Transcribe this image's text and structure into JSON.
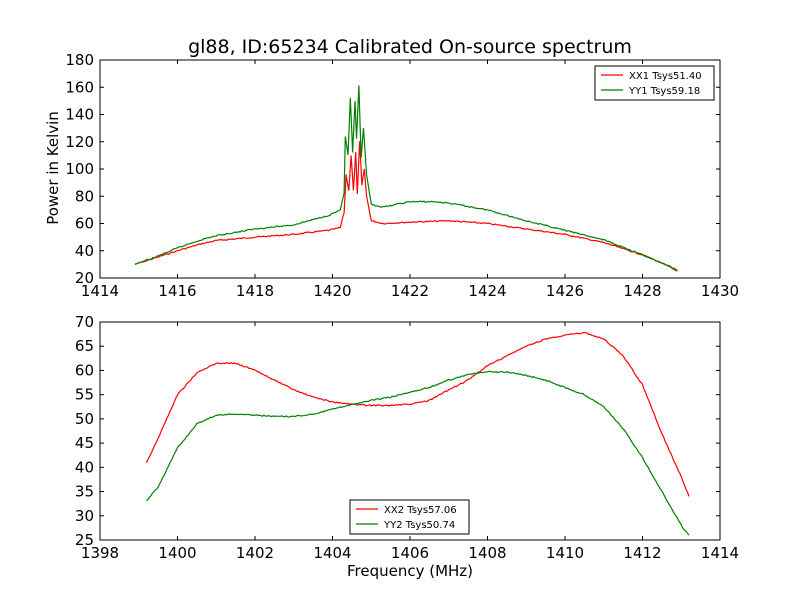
{
  "figure": {
    "title": "gl88, ID:65234 Calibrated On-source spectrum"
  },
  "colors": {
    "xx": "#ff0000",
    "yy": "#008000"
  },
  "chart_data": [
    {
      "type": "line",
      "title": "gl88, ID:65234 Calibrated On-source spectrum",
      "xlabel": "",
      "ylabel": "Power in Kelvin",
      "xlim": [
        1414,
        1430
      ],
      "ylim": [
        20,
        180
      ],
      "xticks": [
        1414,
        1416,
        1418,
        1420,
        1422,
        1424,
        1426,
        1428,
        1430
      ],
      "yticks": [
        20,
        40,
        60,
        80,
        100,
        120,
        140,
        160,
        180
      ],
      "legend_position": "top-right",
      "grid": false,
      "series": [
        {
          "name": "XX1 Tsys51.40",
          "color": "#ff0000",
          "points": [
            [
              1414.9,
              30
            ],
            [
              1415.4,
              34.5
            ],
            [
              1416,
              40
            ],
            [
              1416.6,
              45
            ],
            [
              1417,
              47.5
            ],
            [
              1418,
              50
            ],
            [
              1419,
              52
            ],
            [
              1419.9,
              55
            ],
            [
              1420.2,
              57
            ],
            [
              1420.3,
              68
            ],
            [
              1420.35,
              96
            ],
            [
              1420.42,
              84
            ],
            [
              1420.48,
              110
            ],
            [
              1420.54,
              84
            ],
            [
              1420.6,
              112
            ],
            [
              1420.64,
              82
            ],
            [
              1420.7,
              120
            ],
            [
              1420.76,
              88
            ],
            [
              1420.82,
              100
            ],
            [
              1420.88,
              80
            ],
            [
              1421,
              62
            ],
            [
              1421.3,
              60
            ],
            [
              1422,
              61
            ],
            [
              1423,
              62
            ],
            [
              1424,
              60
            ],
            [
              1425,
              56
            ],
            [
              1426,
              52
            ],
            [
              1427,
              46
            ],
            [
              1428,
              37
            ],
            [
              1428.5,
              31
            ],
            [
              1428.9,
              25
            ]
          ]
        },
        {
          "name": "YY1 Tsys59.18",
          "color": "#008000",
          "points": [
            [
              1414.9,
              30
            ],
            [
              1415.4,
              35
            ],
            [
              1416,
              42
            ],
            [
              1416.6,
              48
            ],
            [
              1417,
              51
            ],
            [
              1418,
              56
            ],
            [
              1419,
              59
            ],
            [
              1419.9,
              66
            ],
            [
              1420.2,
              70
            ],
            [
              1420.3,
              82
            ],
            [
              1420.33,
              124
            ],
            [
              1420.4,
              110
            ],
            [
              1420.46,
              152
            ],
            [
              1420.52,
              112
            ],
            [
              1420.58,
              150
            ],
            [
              1420.62,
              122
            ],
            [
              1420.68,
              161
            ],
            [
              1420.74,
              108
            ],
            [
              1420.8,
              130
            ],
            [
              1420.88,
              95
            ],
            [
              1421,
              74
            ],
            [
              1421.3,
              72
            ],
            [
              1422,
              76
            ],
            [
              1422.6,
              76
            ],
            [
              1423,
              75
            ],
            [
              1424,
              70
            ],
            [
              1425,
              62
            ],
            [
              1426,
              55
            ],
            [
              1427,
              48
            ],
            [
              1428,
              37
            ],
            [
              1428.5,
              31
            ],
            [
              1428.9,
              26
            ]
          ]
        }
      ]
    },
    {
      "type": "line",
      "title": "",
      "xlabel": "Frequency (MHz)",
      "ylabel": "",
      "xlim": [
        1398,
        1414
      ],
      "ylim": [
        25,
        70
      ],
      "xticks": [
        1398,
        1400,
        1402,
        1404,
        1406,
        1408,
        1410,
        1412,
        1414
      ],
      "yticks": [
        25,
        30,
        35,
        40,
        45,
        50,
        55,
        60,
        65,
        70
      ],
      "legend_position": "lower-center",
      "grid": false,
      "series": [
        {
          "name": "XX2 Tsys57.06",
          "color": "#ff0000",
          "points": [
            [
              1399.2,
              41
            ],
            [
              1399.5,
              46
            ],
            [
              1400,
              55
            ],
            [
              1400.5,
              59.5
            ],
            [
              1401,
              61.5
            ],
            [
              1401.5,
              61.5
            ],
            [
              1402,
              60
            ],
            [
              1402.5,
              58
            ],
            [
              1403,
              56
            ],
            [
              1403.5,
              54.5
            ],
            [
              1404,
              53.5
            ],
            [
              1404.5,
              53
            ],
            [
              1405,
              52.8
            ],
            [
              1405.5,
              52.8
            ],
            [
              1406,
              53
            ],
            [
              1406.5,
              53.8
            ],
            [
              1407,
              56
            ],
            [
              1407.5,
              58
            ],
            [
              1408,
              61
            ],
            [
              1408.5,
              63
            ],
            [
              1409,
              65
            ],
            [
              1409.5,
              66.5
            ],
            [
              1410,
              67.3
            ],
            [
              1410.5,
              67.8
            ],
            [
              1411,
              66.5
            ],
            [
              1411.5,
              63
            ],
            [
              1412,
              57
            ],
            [
              1412.5,
              47
            ],
            [
              1413,
              38
            ],
            [
              1413.2,
              34
            ]
          ]
        },
        {
          "name": "YY2 Tsys50.74",
          "color": "#008000",
          "points": [
            [
              1399.2,
              33
            ],
            [
              1399.5,
              36
            ],
            [
              1400,
              44
            ],
            [
              1400.5,
              49
            ],
            [
              1401,
              50.8
            ],
            [
              1401.5,
              51
            ],
            [
              1402,
              50.8
            ],
            [
              1402.5,
              50.5
            ],
            [
              1403,
              50.5
            ],
            [
              1403.5,
              51
            ],
            [
              1404,
              52
            ],
            [
              1404.5,
              53
            ],
            [
              1405,
              53.8
            ],
            [
              1405.5,
              54.5
            ],
            [
              1406,
              55.5
            ],
            [
              1406.5,
              56.5
            ],
            [
              1407,
              58
            ],
            [
              1407.5,
              59.2
            ],
            [
              1408,
              59.7
            ],
            [
              1408.5,
              59.6
            ],
            [
              1409,
              59
            ],
            [
              1409.5,
              58
            ],
            [
              1410,
              56.5
            ],
            [
              1410.5,
              55
            ],
            [
              1411,
              52.5
            ],
            [
              1411.5,
              48
            ],
            [
              1412,
              42
            ],
            [
              1412.5,
              35
            ],
            [
              1413,
              28
            ],
            [
              1413.2,
              26
            ]
          ]
        }
      ]
    }
  ]
}
